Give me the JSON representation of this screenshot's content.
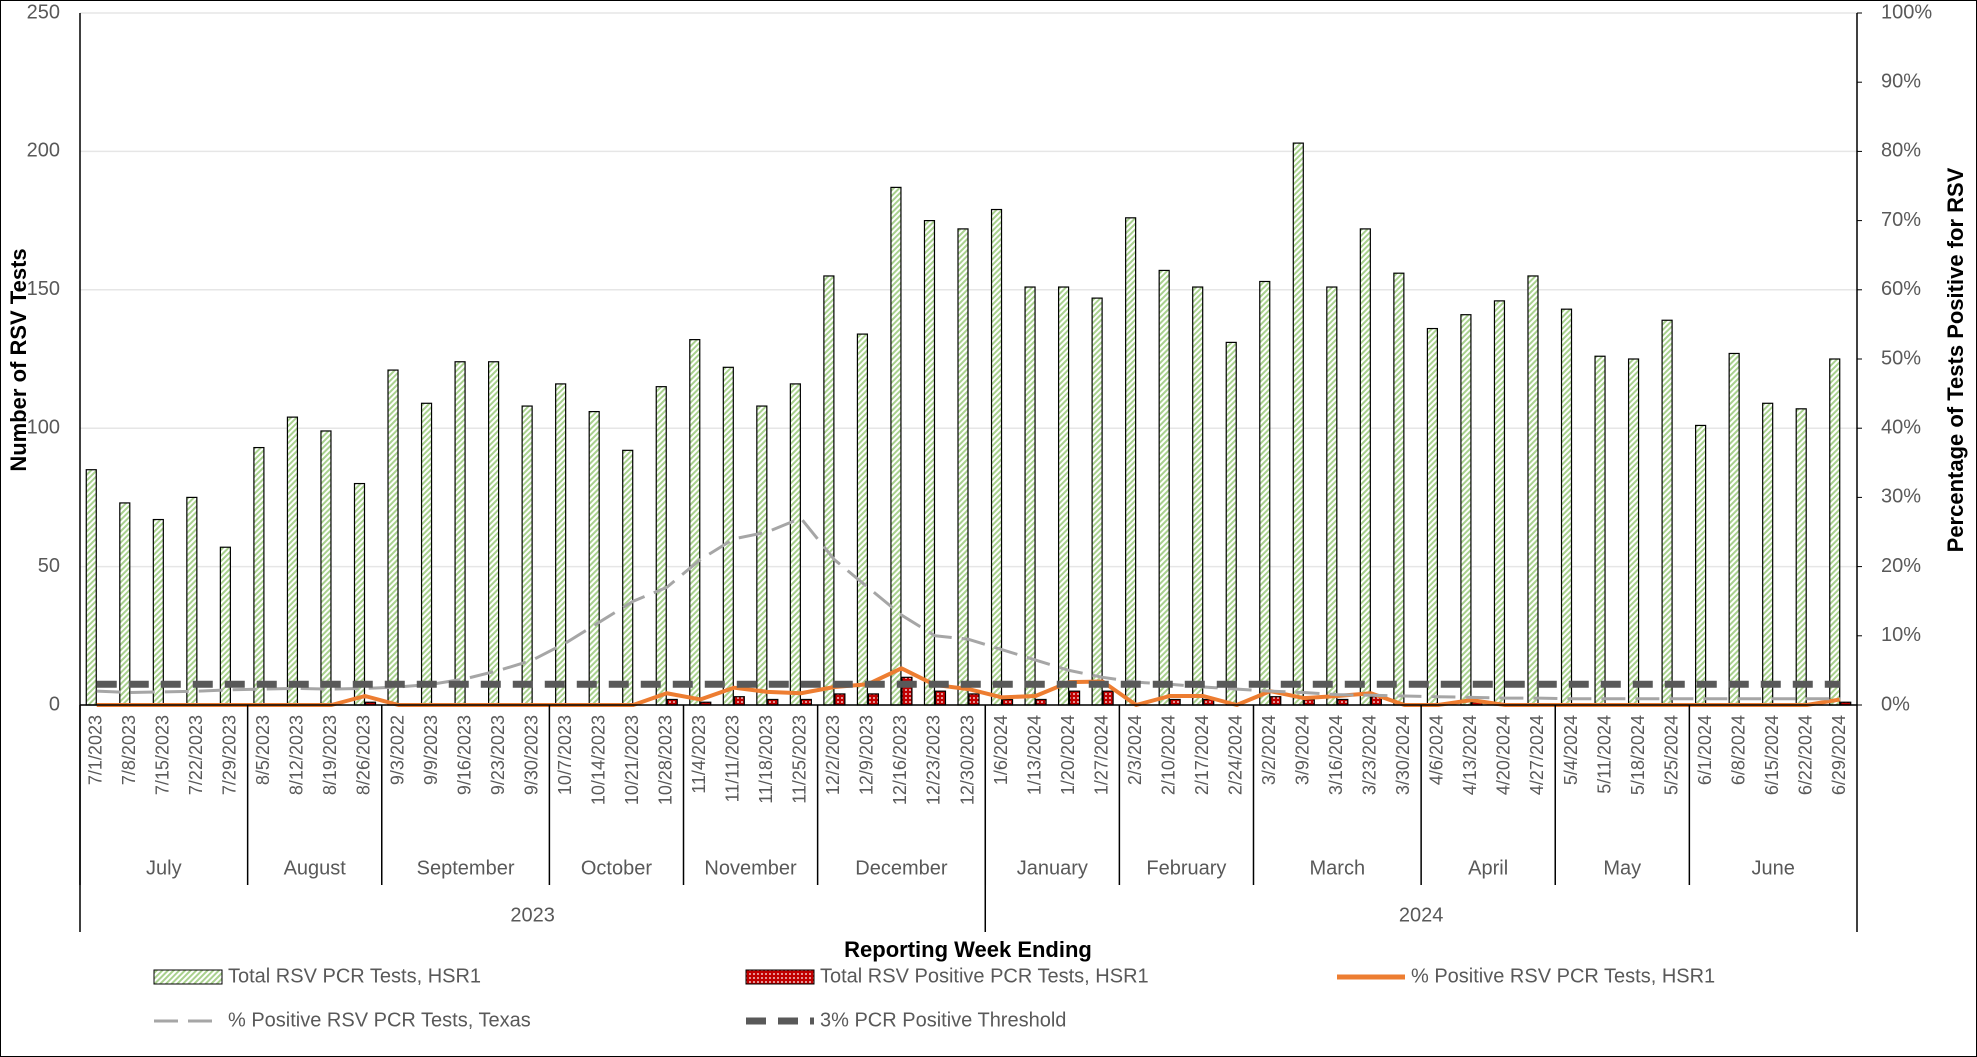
{
  "chart_data": {
    "type": "bar",
    "x_label": "Reporting Week Ending",
    "y_label": "Number of RSV Tests",
    "y2_label": "Percentage of Tests Positive for RSV",
    "categories": [
      "7/1/2023",
      "7/8/2023",
      "7/15/2023",
      "7/22/2023",
      "7/29/2023",
      "8/5/2023",
      "8/12/2023",
      "8/19/2023",
      "8/26/2023",
      "9/3/2022",
      "9/9/2023",
      "9/16/2023",
      "9/23/2023",
      "9/30/2023",
      "10/7/2023",
      "10/14/2023",
      "10/21/2023",
      "10/28/2023",
      "11/4/2023",
      "11/11/2023",
      "11/18/2023",
      "11/25/2023",
      "12/2/2023",
      "12/9/2023",
      "12/16/2023",
      "12/23/2023",
      "12/30/2023",
      "1/6/2024",
      "1/13/2024",
      "1/20/2024",
      "1/27/2024",
      "2/3/2024",
      "2/10/2024",
      "2/17/2024",
      "2/24/2024",
      "3/2/2024",
      "3/9/2024",
      "3/16/2024",
      "3/23/2024",
      "3/30/2024",
      "4/6/2024",
      "4/13/2024",
      "4/20/2024",
      "4/27/2024",
      "5/4/2024",
      "5/11/2024",
      "5/18/2024",
      "5/25/2024",
      "6/1/2024",
      "6/8/2024",
      "6/15/2024",
      "6/22/2024",
      "6/29/2024"
    ],
    "month_labels": [
      "July",
      "August",
      "September",
      "October",
      "November",
      "December",
      "January",
      "February",
      "March",
      "April",
      "May",
      "June"
    ],
    "year_labels": [
      "2023",
      "2024"
    ],
    "ylim": [
      0,
      250
    ],
    "yticks": [
      0,
      50,
      100,
      150,
      200,
      250
    ],
    "y2lim": [
      0,
      100
    ],
    "y2ticks": [
      {
        "value": 0,
        "label": "0%"
      },
      {
        "value": 10,
        "label": "10%"
      },
      {
        "value": 20,
        "label": "20%"
      },
      {
        "value": 30,
        "label": "30%"
      },
      {
        "value": 40,
        "label": "40%"
      },
      {
        "value": 50,
        "label": "50%"
      },
      {
        "value": 60,
        "label": "60%"
      },
      {
        "value": 70,
        "label": "70%"
      },
      {
        "value": 80,
        "label": "80%"
      },
      {
        "value": 90,
        "label": "90%"
      },
      {
        "value": 100,
        "label": "100%"
      }
    ],
    "grid": true,
    "series": [
      {
        "name": "Total RSV PCR Tests, HSR1",
        "type": "bar",
        "color": "#a9d18e",
        "pattern": "hatch",
        "values": [
          85,
          73,
          67,
          75,
          57,
          93,
          104,
          99,
          80,
          121,
          109,
          124,
          124,
          108,
          116,
          106,
          92,
          115,
          132,
          122,
          108,
          116,
          155,
          134,
          187,
          175,
          172,
          179,
          151,
          151,
          147,
          176,
          157,
          151,
          131,
          153,
          203,
          151,
          172,
          156,
          136,
          141,
          146,
          155,
          143,
          126,
          125,
          139,
          101,
          127,
          109,
          107,
          125
        ]
      },
      {
        "name": "Total RSV Positive PCR Tests, HSR1",
        "type": "bar",
        "color": "#c00000",
        "pattern": "dots",
        "values": [
          0,
          0,
          0,
          0,
          0,
          0,
          0,
          0,
          1,
          0,
          0,
          0,
          0,
          0,
          0,
          0,
          0,
          2,
          1,
          3,
          2,
          2,
          4,
          4,
          10,
          5,
          4,
          2,
          2,
          5,
          5,
          0,
          2,
          2,
          0,
          3,
          2,
          2,
          3,
          0,
          0,
          1,
          0,
          0,
          0,
          0,
          0,
          0,
          0,
          0,
          0,
          0,
          1
        ]
      },
      {
        "name": "% Positive RSV PCR Tests, HSR1",
        "type": "line",
        "axis": "y2",
        "color": "#ed7d31",
        "dash": "solid",
        "values": [
          0,
          0,
          0,
          0,
          0,
          0,
          0,
          0,
          1.3,
          0,
          0,
          0,
          0,
          0,
          0,
          0,
          0,
          1.7,
          0.8,
          2.5,
          1.9,
          1.7,
          2.6,
          3.0,
          5.3,
          2.9,
          2.3,
          1.1,
          1.3,
          3.3,
          3.4,
          0,
          1.3,
          1.3,
          0,
          2.0,
          1.0,
          1.3,
          1.7,
          0,
          0,
          0.7,
          0,
          0,
          0,
          0,
          0,
          0,
          0,
          0,
          0,
          0,
          0.8
        ]
      },
      {
        "name": "% Positive RSV PCR Tests, Texas",
        "type": "line",
        "axis": "y2",
        "color": "#a6a6a6",
        "dash": "dashed",
        "values": [
          2.0,
          1.8,
          1.9,
          2.0,
          2.2,
          2.3,
          2.4,
          2.3,
          2.4,
          2.6,
          3.0,
          3.8,
          5.0,
          6.5,
          9,
          12,
          15,
          17,
          21,
          24,
          25,
          27,
          21,
          17,
          13,
          10,
          9.5,
          8,
          6.5,
          5,
          4,
          3.3,
          3,
          2.6,
          2.3,
          2.0,
          1.8,
          1.5,
          1.4,
          1.3,
          1.2,
          1.1,
          1.0,
          1.0,
          0.9,
          0.9,
          0.9,
          0.9,
          0.9,
          0.9,
          0.9,
          0.9,
          0.9
        ]
      },
      {
        "name": "3% PCR Positive Threshold",
        "type": "line",
        "axis": "y2",
        "color": "#595959",
        "dash": "thick-dashed",
        "values": [
          3,
          3,
          3,
          3,
          3,
          3,
          3,
          3,
          3,
          3,
          3,
          3,
          3,
          3,
          3,
          3,
          3,
          3,
          3,
          3,
          3,
          3,
          3,
          3,
          3,
          3,
          3,
          3,
          3,
          3,
          3,
          3,
          3,
          3,
          3,
          3,
          3,
          3,
          3,
          3,
          3,
          3,
          3,
          3,
          3,
          3,
          3,
          3,
          3,
          3,
          3,
          3,
          3
        ]
      }
    ]
  }
}
